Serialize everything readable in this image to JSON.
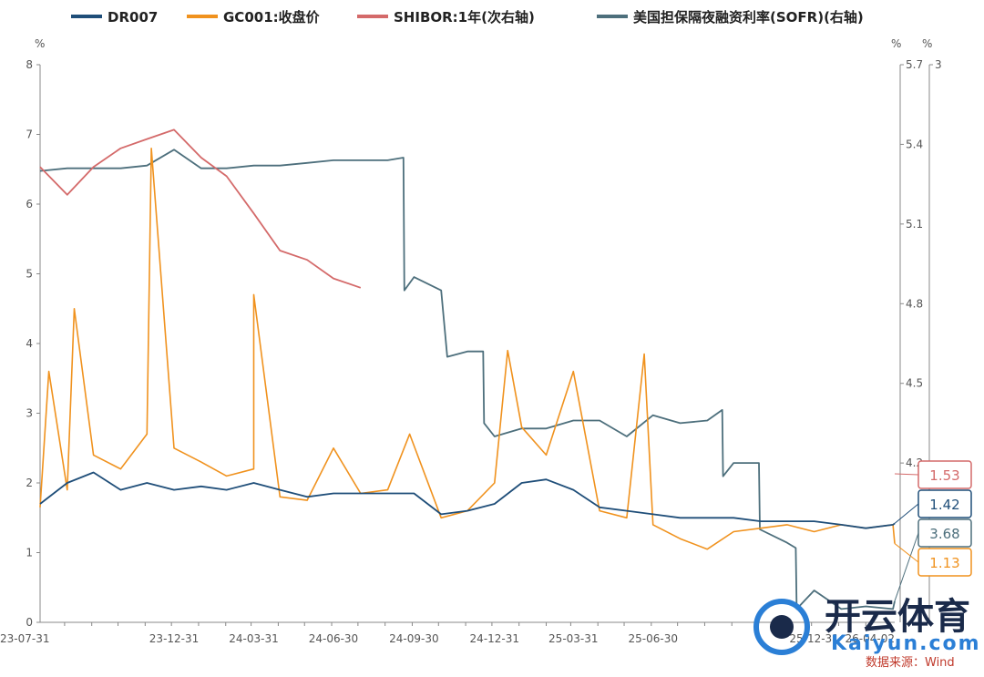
{
  "chart_data": {
    "type": "line",
    "series": [
      {
        "name": "DR007",
        "axis": "left",
        "color": "#1f4e79",
        "last_value": "1.42",
        "points": [
          [
            "23-07-31",
            1.7
          ],
          [
            "23-08-31",
            2.0
          ],
          [
            "23-09-30",
            2.15
          ],
          [
            "23-10-31",
            1.9
          ],
          [
            "23-11-30",
            2.0
          ],
          [
            "23-12-31",
            1.9
          ],
          [
            "24-01-31",
            1.95
          ],
          [
            "24-02-29",
            1.9
          ],
          [
            "24-03-31",
            2.0
          ],
          [
            "24-04-30",
            1.9
          ],
          [
            "24-05-31",
            1.8
          ],
          [
            "24-06-30",
            1.85
          ],
          [
            "24-07-31",
            1.85
          ],
          [
            "24-08-31",
            1.85
          ],
          [
            "24-09-30",
            1.85
          ],
          [
            "24-10-31",
            1.55
          ],
          [
            "24-11-30",
            1.6
          ],
          [
            "24-12-31",
            1.7
          ],
          [
            "25-01-31",
            2.0
          ],
          [
            "25-02-28",
            2.05
          ],
          [
            "25-03-31",
            1.9
          ],
          [
            "25-04-30",
            1.65
          ],
          [
            "25-05-31",
            1.6
          ],
          [
            "25-06-30",
            1.55
          ],
          [
            "25-07-31",
            1.5
          ],
          [
            "25-08-31",
            1.5
          ],
          [
            "25-09-30",
            1.5
          ],
          [
            "25-10-31",
            1.45
          ],
          [
            "25-11-30",
            1.45
          ],
          [
            "25-12-31",
            1.45
          ],
          [
            "26-01-31",
            1.4
          ],
          [
            "26-02-28",
            1.35
          ],
          [
            "26-03-31",
            1.4
          ],
          [
            "26-04-02",
            1.42
          ]
        ]
      },
      {
        "name": "GC001:收盘价",
        "axis": "left",
        "color": "#f0921e",
        "last_value": "1.13",
        "points": [
          [
            "23-07-31",
            1.65
          ],
          [
            "23-08-10",
            3.6
          ],
          [
            "23-08-31",
            1.9
          ],
          [
            "23-09-08",
            4.5
          ],
          [
            "23-09-30",
            2.4
          ],
          [
            "23-10-31",
            2.2
          ],
          [
            "23-11-30",
            2.7
          ],
          [
            "23-12-05",
            6.8
          ],
          [
            "23-12-31",
            2.5
          ],
          [
            "24-01-31",
            2.3
          ],
          [
            "24-02-29",
            2.1
          ],
          [
            "24-03-31",
            2.2
          ],
          [
            "24-03-31",
            4.7
          ],
          [
            "24-04-30",
            1.8
          ],
          [
            "24-05-31",
            1.75
          ],
          [
            "24-06-30",
            2.5
          ],
          [
            "24-07-31",
            1.85
          ],
          [
            "24-08-31",
            1.9
          ],
          [
            "24-09-25",
            2.7
          ],
          [
            "24-10-31",
            1.5
          ],
          [
            "24-11-30",
            1.6
          ],
          [
            "24-12-31",
            2.0
          ],
          [
            "25-01-15",
            3.9
          ],
          [
            "25-01-31",
            2.8
          ],
          [
            "25-02-28",
            2.4
          ],
          [
            "25-03-31",
            3.6
          ],
          [
            "25-04-30",
            1.6
          ],
          [
            "25-05-31",
            1.5
          ],
          [
            "25-06-20",
            3.85
          ],
          [
            "25-06-30",
            1.4
          ],
          [
            "25-07-31",
            1.2
          ],
          [
            "25-08-31",
            1.05
          ],
          [
            "25-09-30",
            1.3
          ],
          [
            "25-10-31",
            1.35
          ],
          [
            "25-11-30",
            1.4
          ],
          [
            "25-12-31",
            1.3
          ],
          [
            "26-01-31",
            1.4
          ],
          [
            "26-02-28",
            1.35
          ],
          [
            "26-03-31",
            1.4
          ],
          [
            "26-04-02",
            1.13
          ]
        ]
      },
      {
        "name": "SHIBOR:1年(次右轴)",
        "axis": "right2",
        "color": "#d46a6a",
        "last_value": "1.53",
        "points": [
          [
            "23-07-31",
            2.45
          ],
          [
            "23-08-31",
            2.3
          ],
          [
            "23-09-30",
            2.45
          ],
          [
            "23-10-31",
            2.55
          ],
          [
            "23-11-30",
            2.6
          ],
          [
            "23-12-31",
            2.65
          ],
          [
            "24-01-31",
            2.5
          ],
          [
            "24-02-29",
            2.4
          ],
          [
            "24-03-31",
            2.2
          ],
          [
            "24-04-30",
            2.0
          ],
          [
            "24-05-31",
            1.95
          ],
          [
            "24-06-30",
            1.85
          ],
          [
            "24-07-31",
            1.8
          ]
        ]
      },
      {
        "name": "美国担保隔夜融资利率(SOFR)(右轴)",
        "axis": "right1",
        "color": "#4d6f7c",
        "last_value": "3.68",
        "points": [
          [
            "23-07-31",
            5.3
          ],
          [
            "23-08-31",
            5.31
          ],
          [
            "23-09-30",
            5.31
          ],
          [
            "23-10-31",
            5.31
          ],
          [
            "23-11-30",
            5.32
          ],
          [
            "23-12-31",
            5.38
          ],
          [
            "24-01-31",
            5.31
          ],
          [
            "24-02-29",
            5.31
          ],
          [
            "24-03-31",
            5.32
          ],
          [
            "24-04-30",
            5.32
          ],
          [
            "24-05-31",
            5.33
          ],
          [
            "24-06-30",
            5.34
          ],
          [
            "24-07-31",
            5.34
          ],
          [
            "24-08-31",
            5.34
          ],
          [
            "24-09-18",
            5.35
          ],
          [
            "24-09-19",
            4.85
          ],
          [
            "24-09-30",
            4.9
          ],
          [
            "24-10-31",
            4.85
          ],
          [
            "24-11-07",
            4.6
          ],
          [
            "24-11-30",
            4.62
          ],
          [
            "24-12-18",
            4.62
          ],
          [
            "24-12-19",
            4.35
          ],
          [
            "24-12-31",
            4.3
          ],
          [
            "25-01-31",
            4.33
          ],
          [
            "25-02-28",
            4.33
          ],
          [
            "25-03-31",
            4.36
          ],
          [
            "25-04-30",
            4.36
          ],
          [
            "25-05-31",
            4.3
          ],
          [
            "25-06-30",
            4.38
          ],
          [
            "25-07-31",
            4.35
          ],
          [
            "25-08-31",
            4.36
          ],
          [
            "25-09-17",
            4.4
          ],
          [
            "25-09-18",
            4.15
          ],
          [
            "25-09-30",
            4.2
          ],
          [
            "25-10-29",
            4.2
          ],
          [
            "25-10-30",
            3.95
          ],
          [
            "25-11-30",
            3.9
          ],
          [
            "25-12-10",
            3.88
          ],
          [
            "25-12-11",
            3.65
          ],
          [
            "25-12-31",
            3.72
          ],
          [
            "26-01-31",
            3.65
          ],
          [
            "26-02-28",
            3.66
          ],
          [
            "26-03-31",
            3.65
          ],
          [
            "26-04-02",
            3.68
          ]
        ]
      }
    ],
    "x_tick_labels": [
      "23-07-31",
      "23-12-31",
      "24-03-31",
      "24-06-30",
      "24-09-30",
      "24-12-31",
      "25-03-31",
      "25-06-30",
      "25-12-31",
      "26-04-02"
    ],
    "axes": {
      "left": {
        "unit": "%",
        "ylim": [
          0,
          8
        ],
        "ticks": [
          "0",
          "1",
          "2",
          "3",
          "4",
          "5",
          "6",
          "7",
          "8"
        ]
      },
      "right1": {
        "unit": "%",
        "ylim": [
          3.6,
          5.7
        ],
        "ticks": [
          "4.2",
          "4.5",
          "4.8",
          "5.1",
          "5.4",
          "5.7"
        ]
      },
      "right2": {
        "unit": "%",
        "ylim": [
          0,
          3
        ],
        "ticks": [
          "3"
        ]
      }
    },
    "legend_position": "top",
    "grid": false
  },
  "source_label": "数据来源：Wind",
  "watermark": {
    "cn": "开云体育",
    "en": "Kaiyun.com"
  }
}
